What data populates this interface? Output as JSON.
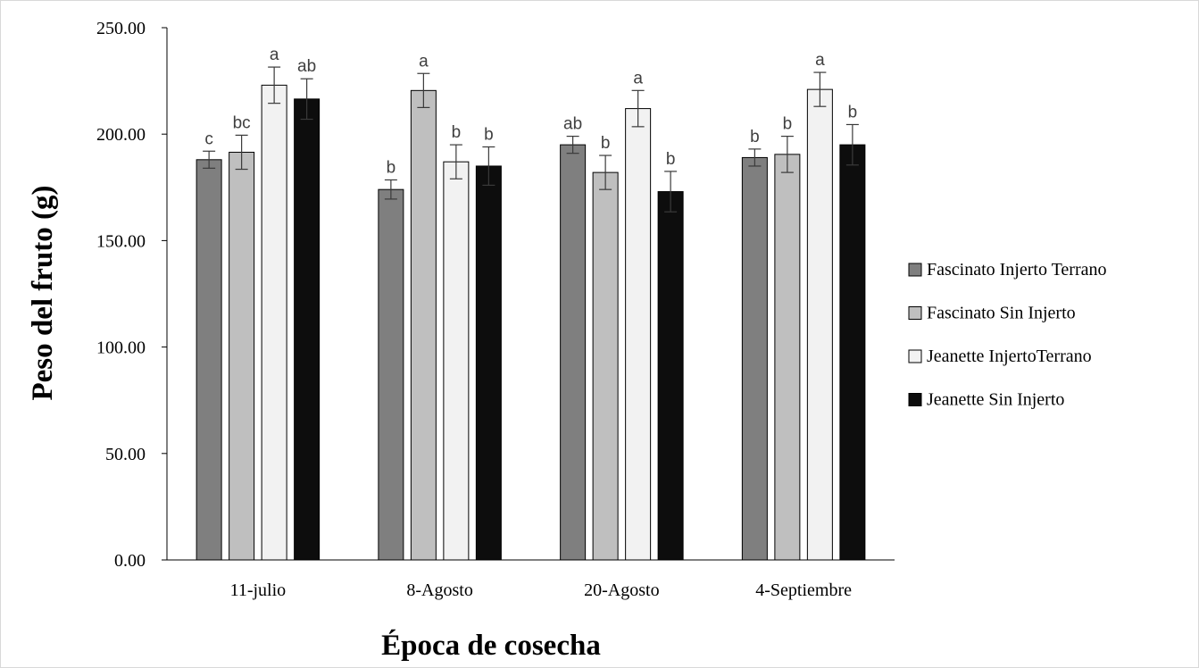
{
  "chart_data": {
    "type": "bar",
    "title": "",
    "xlabel": "Época de cosecha",
    "ylabel": "Peso del fruto (g)",
    "ylim": [
      0,
      250
    ],
    "yticks": [
      "0.00",
      "50.00",
      "100.00",
      "150.00",
      "200.00",
      "250.00"
    ],
    "grid": false,
    "legend_position": "right",
    "categories": [
      "11-julio",
      "8-Agosto",
      "20-Agosto",
      "4-Septiembre"
    ],
    "series": [
      {
        "name": "Fascinato Injerto Terrano",
        "color": "#7f7f7f",
        "values": [
          188,
          174,
          195,
          189
        ],
        "errors": [
          4,
          4.5,
          4,
          4
        ],
        "letters": [
          "c",
          "b",
          "ab",
          "b"
        ]
      },
      {
        "name": "Fascinato Sin Injerto",
        "color": "#bfbfbf",
        "values": [
          191.5,
          220.5,
          182,
          190.5
        ],
        "errors": [
          8,
          8,
          8,
          8.5
        ],
        "letters": [
          "bc",
          "a",
          "b",
          "b"
        ]
      },
      {
        "name": "Jeanette InjertoTerrano",
        "color": "#f2f2f2",
        "values": [
          223,
          187,
          212,
          221
        ],
        "errors": [
          8.5,
          8,
          8.5,
          8
        ],
        "letters": [
          "a",
          "b",
          "a",
          "a"
        ]
      },
      {
        "name": "Jeanette Sin Injerto",
        "color": "#0d0d0d",
        "values": [
          216.5,
          185,
          173,
          195
        ],
        "errors": [
          9.5,
          9,
          9.5,
          9.5
        ],
        "letters": [
          "ab",
          "b",
          "b",
          "b"
        ]
      }
    ]
  }
}
